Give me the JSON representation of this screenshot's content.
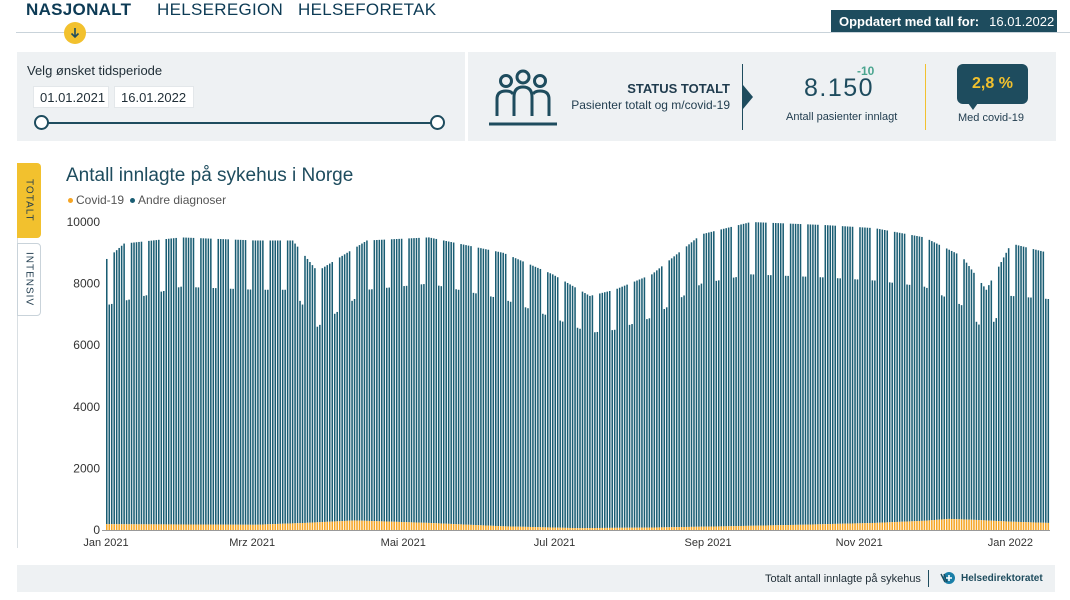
{
  "nav": {
    "tabs": [
      "NASJONALT",
      "HELSEREGION",
      "HELSEFORETAK"
    ],
    "active_tab": "NASJONALT",
    "updated_label": "Oppdatert med tall for:",
    "updated_date": "16.01.2022"
  },
  "period": {
    "label": "Velg ønsket tidsperiode",
    "from": "01.01.2021",
    "to": "16.01.2022"
  },
  "status": {
    "title": "STATUS TOTALT",
    "subtitle": "Pasienter totalt og m/covid-19",
    "total_value": "8.150",
    "total_delta": "-10",
    "total_caption": "Antall pasienter innlagt",
    "covid_pct": "2,8 %",
    "covid_caption": "Med covid-19"
  },
  "side_tabs": [
    "TOTALT",
    "INTENSIV"
  ],
  "footer": {
    "caption": "Totalt antall innlagte på sykehus",
    "logo_text": "Helsedirektoratet"
  },
  "colors": {
    "navy": "#1e4c5e",
    "bar_other": "#1a5d73",
    "bar_covid": "#f5a524",
    "accent_yellow": "#f2c12e"
  },
  "chart_data": {
    "type": "bar",
    "stacked": true,
    "title": "Antall innlagte på sykehus i Norge",
    "legend": [
      "Covid-19",
      "Andre diagnoser"
    ],
    "legend_position": "top-left",
    "xlabel": "",
    "ylabel": "",
    "ylim": [
      0,
      10000
    ],
    "y_ticks": [
      0,
      2000,
      4000,
      6000,
      8000,
      10000
    ],
    "x_start": "01.01.2021",
    "x_end": "16.01.2022",
    "x_tick_labels": [
      "Jan 2021",
      "Mrz 2021",
      "Mai 2021",
      "Jul 2021",
      "Sep 2021",
      "Nov 2021",
      "Jan 2022"
    ],
    "x_tick_day_index": [
      0,
      59,
      120,
      181,
      243,
      304,
      365
    ],
    "grid": false,
    "series": [
      {
        "name": "Covid-19",
        "color": "#f5a524",
        "anchors_day_index": [
          0,
          30,
          60,
          80,
          100,
          130,
          160,
          190,
          220,
          250,
          280,
          310,
          330,
          340,
          350,
          365,
          380
        ],
        "anchor_values": [
          190,
          180,
          170,
          230,
          310,
          230,
          120,
          60,
          80,
          120,
          170,
          230,
          300,
          360,
          330,
          270,
          230
        ]
      },
      {
        "name": "Andre diagnoser",
        "color": "#1a5d73",
        "weekday_total_anchors_day_index": [
          0,
          7,
          30,
          60,
          75,
          85,
          105,
          130,
          160,
          180,
          195,
          205,
          220,
          240,
          260,
          290,
          310,
          330,
          345,
          355,
          365,
          380
        ],
        "weekday_total_anchor_values": [
          8800,
          9300,
          9500,
          9400,
          9400,
          8400,
          9400,
          9500,
          9000,
          8300,
          7600,
          7800,
          8300,
          9600,
          10000,
          9900,
          9800,
          9500,
          8900,
          7800,
          9300,
          9000
        ],
        "weekend_total_anchors_day_index": [
          0,
          30,
          60,
          75,
          85,
          105,
          130,
          160,
          180,
          195,
          205,
          220,
          240,
          260,
          290,
          310,
          330,
          345,
          355,
          365,
          380
        ],
        "weekend_total_anchor_values": [
          7300,
          7900,
          7800,
          7800,
          6600,
          7800,
          8000,
          7500,
          6900,
          6400,
          6500,
          6900,
          8000,
          8300,
          8200,
          8100,
          7900,
          7300,
          6400,
          7600,
          7500
        ],
        "notes_total": "values shown are total bar heights including Covid-19"
      }
    ]
  }
}
